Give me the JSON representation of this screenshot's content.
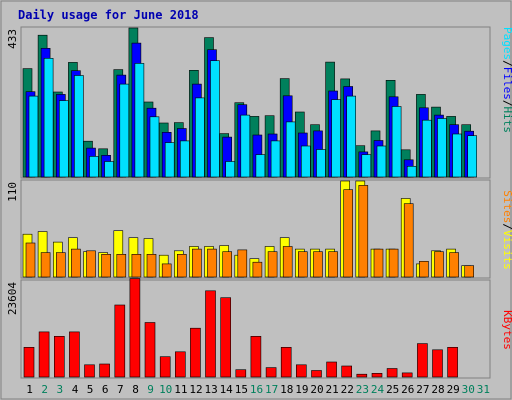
{
  "chart_data": {
    "type": "bar",
    "title": "Daily usage for June 2018",
    "categories": [
      "1",
      "2",
      "3",
      "4",
      "5",
      "6",
      "7",
      "8",
      "9",
      "10",
      "11",
      "12",
      "13",
      "14",
      "15",
      "16",
      "17",
      "18",
      "19",
      "20",
      "21",
      "22",
      "23",
      "24",
      "25",
      "26",
      "27",
      "28",
      "29",
      "30",
      "31"
    ],
    "weekend_days": [
      2,
      3,
      9,
      10,
      16,
      17,
      23,
      24,
      30,
      31
    ],
    "panels": [
      {
        "id": "pages-files-hits",
        "max_label": "433",
        "ymax": 433,
        "series": [
          {
            "name": "Hits",
            "color": "#00805c",
            "values": [
              315,
              412,
              247,
              333,
              104,
              82,
              312,
              433,
              218,
              157,
              158,
              310,
              405,
              126,
              216,
              176,
              178,
              286,
              189,
              152,
              334,
              285,
              91,
              134,
              281,
              79,
              240,
              203,
              176,
              152,
              0
            ]
          },
          {
            "name": "Files",
            "color": "#0000ff",
            "values": [
              248,
              374,
              240,
              309,
              84,
              63,
              296,
              389,
              200,
              130,
              141,
              270,
              370,
              116,
              210,
              122,
              125,
              236,
              128,
              134,
              250,
              263,
              73,
              106,
              233,
              50,
              201,
              180,
              152,
              133,
              0
            ]
          },
          {
            "name": "Pages",
            "color": "#00e0ff",
            "values": [
              235,
              345,
              222,
              295,
              60,
              45,
              270,
              330,
              175,
              100,
              105,
              230,
              338,
              45,
              180,
              65,
              105,
              160,
              90,
              80,
              225,
              235,
              65,
              90,
              205,
              31,
              165,
              170,
              125,
              120,
              0
            ]
          }
        ]
      },
      {
        "id": "visits-sites",
        "max_label": "110",
        "ymax": 110,
        "series": [
          {
            "name": "Visits",
            "color": "#ffff00",
            "values": [
              49,
              52,
              40,
              45,
              29,
              28,
              53,
              45,
              44,
              25,
              30,
              35,
              35,
              36,
              25,
              21,
              35,
              45,
              32,
              32,
              32,
              110,
              110,
              32,
              32,
              90,
              15,
              30,
              32,
              13,
              0
            ]
          },
          {
            "name": "Sites",
            "color": "#ff8000",
            "values": [
              39,
              28,
              28,
              32,
              30,
              26,
              26,
              26,
              26,
              15,
              26,
              32,
              32,
              29,
              31,
              17,
              29,
              35,
              29,
              29,
              29,
              100,
              105,
              32,
              32,
              84,
              18,
              29,
              28,
              13,
              0
            ]
          }
        ]
      },
      {
        "id": "kbytes",
        "max_label": "23604",
        "ymax": 23604,
        "series": [
          {
            "name": "KBytes",
            "color": "#ff0000",
            "values": [
              7300,
              11100,
              10000,
              11100,
              3000,
              3200,
              17700,
              24200,
              13400,
              5000,
              6200,
              12000,
              21200,
              19500,
              1800,
              10000,
              2300,
              7300,
              3000,
              1600,
              3700,
              2700,
              700,
              900,
              2100,
              1000,
              8200,
              6700,
              7300,
              0,
              0
            ]
          }
        ]
      }
    ],
    "legend_right": [
      {
        "text": "Pages",
        "color": "#00e0ff"
      },
      {
        "text": "/",
        "color": "#000000"
      },
      {
        "text": "Files",
        "color": "#0000ff"
      },
      {
        "text": "/",
        "color": "#000000"
      },
      {
        "text": "Hits",
        "color": "#00805c"
      }
    ],
    "legend_mid": [
      {
        "text": "Sites",
        "color": "#ff8000"
      },
      {
        "text": "/",
        "color": "#000000"
      },
      {
        "text": "Visits",
        "color": "#ffff00"
      }
    ],
    "legend_bottom": [
      {
        "text": "KBytes",
        "color": "#ff0000"
      }
    ],
    "colors": {
      "title": "#0000b0",
      "weekday_label": "#000000",
      "weekend_label": "#00805c",
      "background": "#c0c0c0"
    }
  }
}
